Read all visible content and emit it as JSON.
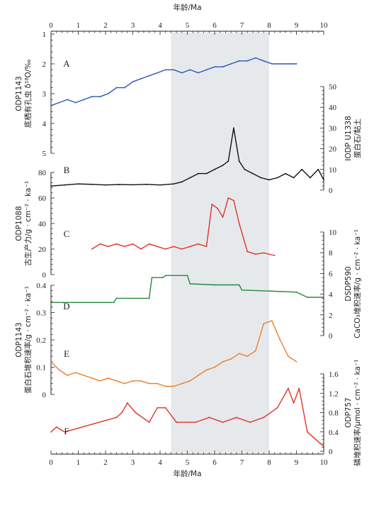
{
  "chart_data": {
    "type": "line",
    "x_axis": {
      "label": "年龄/Ma",
      "range": [
        0,
        10
      ],
      "ticks": [
        "0",
        "1",
        "2",
        "3",
        "4",
        "5",
        "6",
        "7",
        "8",
        "9",
        "10"
      ]
    },
    "highlight": {
      "from": 4.4,
      "to": 8.0,
      "color": "#e6e9ec"
    },
    "panels": [
      {
        "letter": "A",
        "color": "#2c55b5",
        "side": "left",
        "ylabel_lines": [
          "ODP1143",
          "底栖有孔虫 δ¹⁸O/‰"
        ],
        "ylim": [
          1,
          5
        ],
        "inverted": true,
        "ticks": [
          "1",
          "2",
          "3",
          "4",
          "5"
        ],
        "x": [
          0.0,
          0.3,
          0.6,
          0.9,
          1.2,
          1.5,
          1.8,
          2.1,
          2.4,
          2.7,
          3.0,
          3.3,
          3.6,
          3.9,
          4.2,
          4.5,
          4.8,
          5.1,
          5.4,
          5.7,
          6.0,
          6.3,
          6.6,
          6.9,
          7.2,
          7.5,
          7.8,
          8.1,
          8.4,
          8.7,
          9.0
        ],
        "values": [
          3.4,
          3.3,
          3.2,
          3.3,
          3.2,
          3.1,
          3.1,
          3.0,
          2.8,
          2.8,
          2.6,
          2.5,
          2.4,
          2.3,
          2.2,
          2.2,
          2.3,
          2.2,
          2.3,
          2.2,
          2.1,
          2.1,
          2.0,
          1.9,
          1.9,
          1.8,
          1.9,
          2.0,
          2.0,
          2.0,
          2.0
        ]
      },
      {
        "letter": "B",
        "color": "#111111",
        "side": "right",
        "ylabel_lines": [
          "IODP U1338",
          "蛋白石/黏土"
        ],
        "ylim": [
          0,
          50
        ],
        "ticks": [
          "0",
          "10",
          "20",
          "30",
          "40",
          "50"
        ],
        "x": [
          0.0,
          0.5,
          1.0,
          1.5,
          2.0,
          2.5,
          3.0,
          3.5,
          4.0,
          4.5,
          4.8,
          5.1,
          5.4,
          5.7,
          6.0,
          6.3,
          6.5,
          6.7,
          6.9,
          7.1,
          7.4,
          7.7,
          8.0,
          8.3,
          8.6,
          8.9,
          9.2,
          9.5,
          9.8,
          10.0
        ],
        "values": [
          2,
          2.5,
          3,
          2.8,
          2.5,
          2.7,
          2.6,
          2.8,
          2.5,
          3,
          4,
          6,
          8,
          8,
          10,
          12,
          14,
          30,
          14,
          10,
          8,
          6,
          5,
          6,
          8,
          6,
          10,
          6,
          10,
          5
        ]
      },
      {
        "letter": "C",
        "color": "#e03428",
        "side": "left",
        "ylabel_lines": [
          "ODP1088",
          "古生产力/g · cm⁻² · ka⁻¹"
        ],
        "ylim": [
          0,
          80
        ],
        "ticks": [
          "0",
          "20",
          "40",
          "60",
          "80"
        ],
        "x": [
          1.5,
          1.8,
          2.1,
          2.4,
          2.7,
          3.0,
          3.3,
          3.6,
          3.9,
          4.2,
          4.5,
          4.8,
          5.1,
          5.4,
          5.7,
          5.9,
          6.1,
          6.3,
          6.5,
          6.7,
          6.9,
          7.2,
          7.5,
          7.8,
          8.2
        ],
        "values": [
          20,
          24,
          22,
          24,
          22,
          24,
          20,
          24,
          22,
          20,
          22,
          20,
          22,
          24,
          22,
          55,
          52,
          45,
          60,
          58,
          40,
          18,
          16,
          17,
          15
        ]
      },
      {
        "letter": "D",
        "color": "#248a3c",
        "side": "right",
        "ylabel_lines": [
          "DSDP590",
          "CaCO₃堆积速率/g · cm⁻² · ka⁻¹"
        ],
        "ylim": [
          0,
          10
        ],
        "ticks": [
          "0",
          "2",
          "4",
          "6",
          "8",
          "10"
        ],
        "x": [
          0.0,
          2.3,
          2.4,
          3.6,
          3.7,
          4.1,
          4.2,
          5.0,
          5.1,
          6.0,
          6.9,
          7.0,
          8.0,
          9.0,
          9.4,
          10.0
        ],
        "values": [
          3.2,
          3.2,
          3.6,
          3.6,
          5.6,
          5.6,
          5.8,
          5.8,
          5.0,
          4.9,
          4.9,
          4.4,
          4.3,
          4.2,
          3.7,
          3.7
        ]
      },
      {
        "letter": "E",
        "color": "#f07c2a",
        "side": "left",
        "ylabel_lines": [
          "ODP1143",
          "蛋白石堆积速率/g · cm⁻² · ka⁻¹"
        ],
        "ylim": [
          0,
          0.4
        ],
        "ticks": [
          "0",
          "0.1",
          "0.2",
          "0.3",
          "0.4"
        ],
        "x": [
          0.0,
          0.3,
          0.6,
          0.9,
          1.2,
          1.5,
          1.8,
          2.1,
          2.4,
          2.7,
          3.0,
          3.3,
          3.6,
          3.9,
          4.2,
          4.5,
          4.8,
          5.1,
          5.4,
          5.7,
          6.0,
          6.3,
          6.6,
          6.9,
          7.2,
          7.5,
          7.8,
          8.1,
          8.4,
          8.7,
          9.0
        ],
        "values": [
          0.12,
          0.09,
          0.07,
          0.08,
          0.07,
          0.06,
          0.05,
          0.06,
          0.05,
          0.04,
          0.05,
          0.05,
          0.04,
          0.04,
          0.03,
          0.03,
          0.04,
          0.05,
          0.07,
          0.09,
          0.1,
          0.12,
          0.13,
          0.15,
          0.14,
          0.16,
          0.26,
          0.27,
          0.2,
          0.14,
          0.12
        ]
      },
      {
        "letter": "F",
        "color": "#e03428",
        "side": "right",
        "ylabel_lines": [
          "ODP757",
          "磷堆积速率/μmol · cm⁻² · ka⁻¹"
        ],
        "ylim": [
          0,
          1.6
        ],
        "ticks": [
          "0",
          "0.4",
          "0.8",
          "1.2",
          "1.6"
        ],
        "x": [
          0.0,
          0.2,
          0.5,
          2.4,
          2.6,
          2.8,
          3.1,
          3.6,
          3.9,
          4.2,
          4.6,
          5.3,
          5.8,
          6.3,
          6.8,
          7.3,
          7.8,
          8.3,
          8.7,
          8.9,
          9.1,
          9.4,
          10.0
        ],
        "values": [
          0.4,
          0.5,
          0.4,
          0.7,
          0.8,
          1.0,
          0.8,
          0.6,
          0.9,
          0.9,
          0.6,
          0.6,
          0.7,
          0.6,
          0.7,
          0.6,
          0.7,
          0.9,
          1.3,
          1.0,
          1.3,
          0.4,
          0.1
        ]
      }
    ]
  }
}
